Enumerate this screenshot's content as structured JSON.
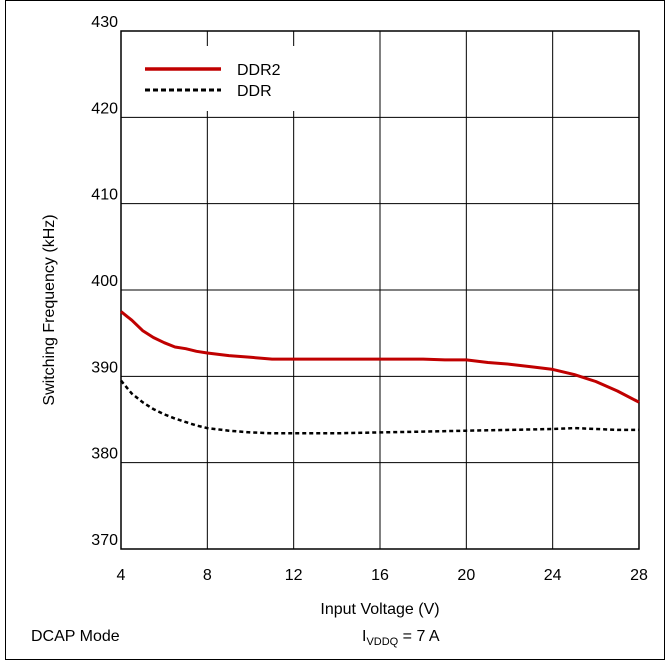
{
  "chart_data": {
    "type": "line",
    "title": "",
    "xlabel": "Input Voltage (V)",
    "ylabel": "Switching Frequency (kHz)",
    "xlim": [
      4,
      28
    ],
    "ylim": [
      370,
      430
    ],
    "xticks": [
      4,
      8,
      12,
      16,
      20,
      24,
      28
    ],
    "yticks": [
      370,
      380,
      390,
      400,
      410,
      420,
      430
    ],
    "grid": true,
    "legend_position": "top-left",
    "series": [
      {
        "name": "DDR2",
        "color": "#c00000",
        "style": "solid",
        "x": [
          4,
          4.5,
          5,
          5.5,
          6,
          6.5,
          7,
          7.5,
          8,
          9,
          10,
          11,
          12,
          14,
          16,
          18,
          19,
          20,
          21,
          22,
          23,
          24,
          25,
          26,
          27,
          28
        ],
        "y": [
          397.5,
          396.5,
          395.3,
          394.5,
          393.9,
          393.4,
          393.2,
          392.9,
          392.7,
          392.4,
          392.2,
          392.0,
          392.0,
          392.0,
          392.0,
          392.0,
          391.9,
          391.9,
          391.6,
          391.4,
          391.1,
          390.8,
          390.2,
          389.4,
          388.3,
          387.0
        ]
      },
      {
        "name": "DDR",
        "color": "#000000",
        "style": "dashed",
        "x": [
          4,
          4.5,
          5,
          5.5,
          6,
          6.5,
          7,
          7.5,
          8,
          9,
          10,
          11,
          12,
          14,
          16,
          18,
          20,
          22,
          24,
          25,
          26,
          27,
          28
        ],
        "y": [
          389.5,
          388.0,
          387.0,
          386.2,
          385.6,
          385.1,
          384.7,
          384.3,
          384.0,
          383.7,
          383.5,
          383.4,
          383.4,
          383.4,
          383.5,
          383.6,
          383.7,
          383.8,
          383.9,
          384.0,
          383.9,
          383.8,
          383.8
        ]
      }
    ]
  },
  "footer": {
    "mode_label": "DCAP Mode",
    "current_label_prefix": "I",
    "current_label_sub": "VDDQ",
    "current_label_suffix": " = 7 A"
  }
}
